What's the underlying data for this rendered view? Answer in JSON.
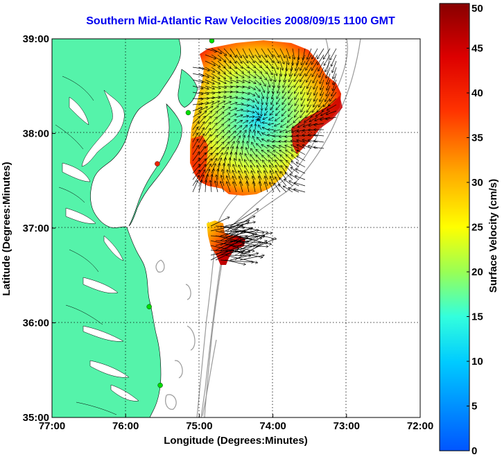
{
  "title": "Southern Mid-Atlantic Raw Velocities 2008/09/15 1100 GMT",
  "xaxis": {
    "label": "Longitude (Degrees:Minutes)",
    "ticks": [
      {
        "value": -77,
        "label": "77:00"
      },
      {
        "value": -76,
        "label": "76:00"
      },
      {
        "value": -75,
        "label": "75:00"
      },
      {
        "value": -74,
        "label": "74:00"
      },
      {
        "value": -73,
        "label": "73:00"
      },
      {
        "value": -72,
        "label": "72:00"
      }
    ]
  },
  "yaxis": {
    "label": "Latitude (Degrees:Minutes)",
    "ticks": [
      {
        "value": 39,
        "label": "39:00"
      },
      {
        "value": 38,
        "label": "38:00"
      },
      {
        "value": 37,
        "label": "37:00"
      },
      {
        "value": 36,
        "label": "36:00"
      },
      {
        "value": 35,
        "label": "35:00"
      }
    ]
  },
  "colorbar": {
    "label": "Surface Velocity (cm/s)",
    "min": 0,
    "max": 50,
    "ticks": [
      "0",
      "5",
      "10",
      "15",
      "20",
      "25",
      "30",
      "35",
      "40",
      "45",
      "50"
    ]
  },
  "colors": {
    "land": "#55f3aa",
    "title": "#0000ee",
    "station": "#00dd00",
    "station_alt": "#ee2200",
    "bathymetry": "#999999",
    "vector": "#000000"
  },
  "stations": [
    {
      "lon": -74.83,
      "lat": 38.98,
      "status": "active"
    },
    {
      "lon": -75.15,
      "lat": 38.22,
      "status": "active"
    },
    {
      "lon": -75.57,
      "lat": 37.68,
      "status": "alt"
    },
    {
      "lon": -75.68,
      "lat": 36.17,
      "status": "active"
    },
    {
      "lon": -75.53,
      "lat": 35.34,
      "status": "active"
    }
  ]
}
